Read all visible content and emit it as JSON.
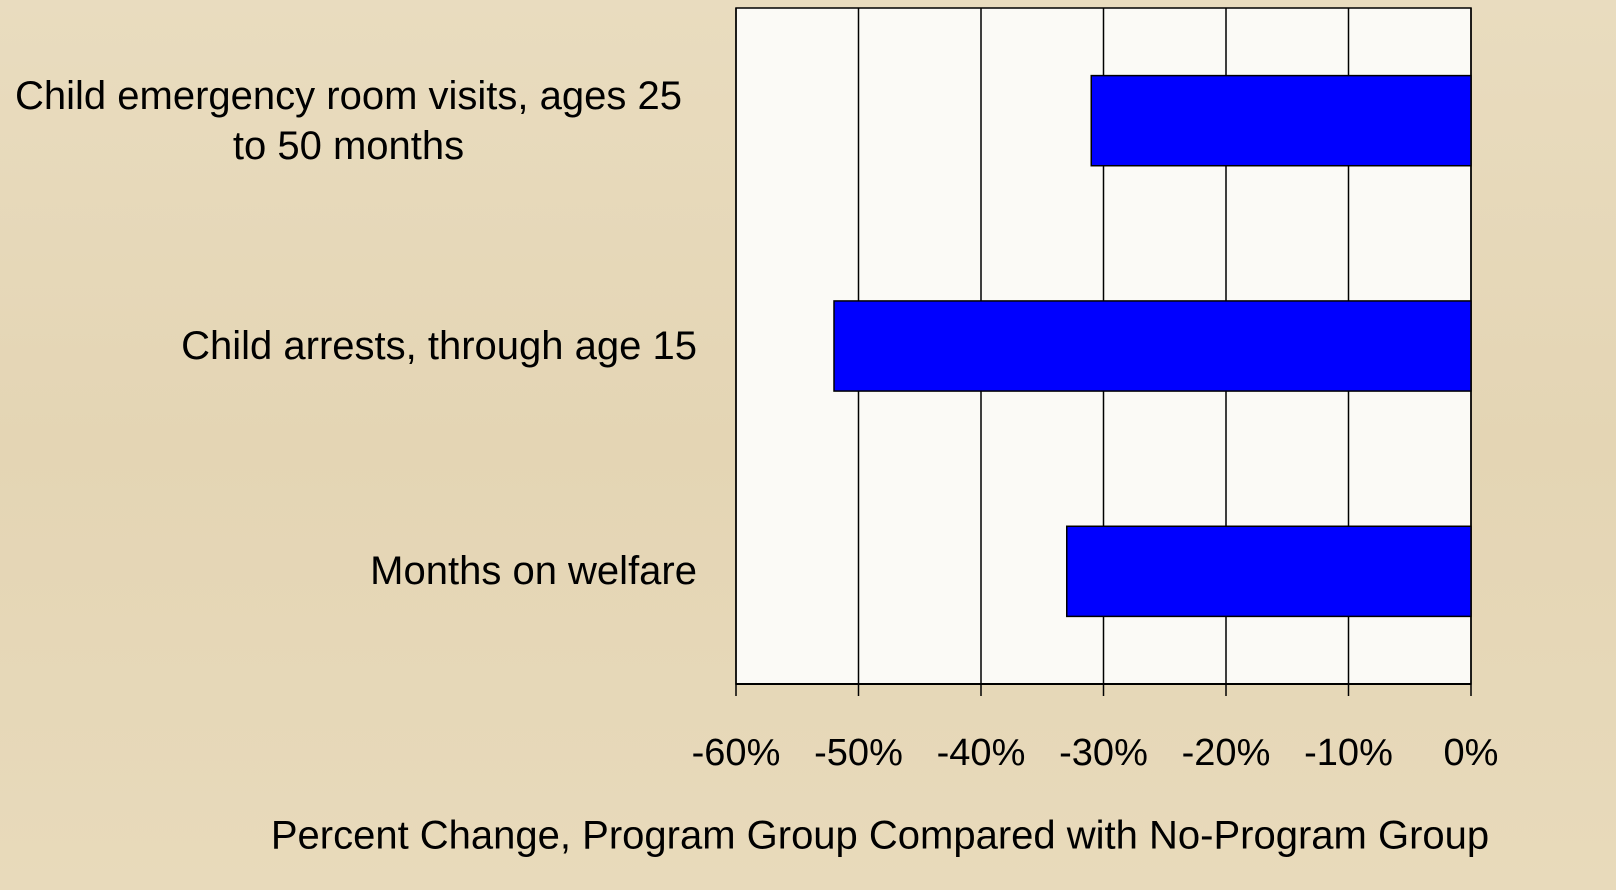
{
  "chart_data": {
    "type": "barh",
    "categories": [
      "Child emergency room visits, ages 25 to 50 months",
      "Child arrests, through age 15",
      "Months on welfare"
    ],
    "values": [
      -31,
      -52,
      -33
    ],
    "color": "#0000ff",
    "xlabel": "Percent Change, Program Group Compared with No-Program Group",
    "xlim": [
      -60,
      0
    ],
    "xticks": [
      {
        "value": -60,
        "label": "-60%"
      },
      {
        "value": -50,
        "label": "-50%"
      },
      {
        "value": -40,
        "label": "-40%"
      },
      {
        "value": -30,
        "label": "-30%"
      },
      {
        "value": -20,
        "label": "-20%"
      },
      {
        "value": -10,
        "label": "-10%"
      },
      {
        "value": 0,
        "label": "0%"
      }
    ],
    "grid": true
  }
}
